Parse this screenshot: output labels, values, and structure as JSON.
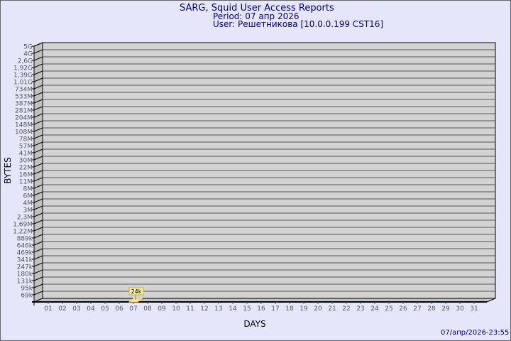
{
  "header": {
    "title": "SARG, Squid User Access Reports",
    "period": "Period: 07 апр 2026",
    "user": "User: Решетникова [10.0.0.199 CST16]"
  },
  "footer": {
    "timestamp": "07/апр/2026-23:55"
  },
  "chart_data": {
    "type": "bar",
    "title": "SARG, Squid User Access Reports",
    "xlabel": "DAYS",
    "ylabel": "BYTES",
    "y_scale": "log",
    "y_ticks": [
      "5G",
      "4G",
      "2,6G",
      "1,92G",
      "1,39G",
      "1,01G",
      "734M",
      "533M",
      "387M",
      "281M",
      "204M",
      "148M",
      "108M",
      "78M",
      "57M",
      "41M",
      "30M",
      "22M",
      "16M",
      "11M",
      "8M",
      "6M",
      "4M",
      "3M",
      "2,3M",
      "1,69M",
      "1,22M",
      "889k",
      "646k",
      "469k",
      "341k",
      "247k",
      "180k",
      "131k",
      "95k",
      "69k"
    ],
    "categories": [
      "01",
      "02",
      "03",
      "04",
      "05",
      "06",
      "07",
      "08",
      "09",
      "10",
      "11",
      "12",
      "13",
      "14",
      "15",
      "16",
      "17",
      "18",
      "19",
      "20",
      "21",
      "22",
      "23",
      "24",
      "25",
      "26",
      "27",
      "28",
      "29",
      "30",
      "31"
    ],
    "series": [
      {
        "values": [
          null,
          null,
          null,
          null,
          null,
          null,
          24000,
          null,
          null,
          null,
          null,
          null,
          null,
          null,
          null,
          null,
          null,
          null,
          null,
          null,
          null,
          null,
          null,
          null,
          null,
          null,
          null,
          null,
          null,
          null,
          null
        ]
      }
    ],
    "data_labels": {
      "07": "24k"
    },
    "grid": true,
    "colors": {
      "background": "#e6e6fa",
      "plot": "#d3d3d3",
      "bar": "#ffe680",
      "label_box": "#f0f0a0",
      "text": "#00008b"
    }
  }
}
